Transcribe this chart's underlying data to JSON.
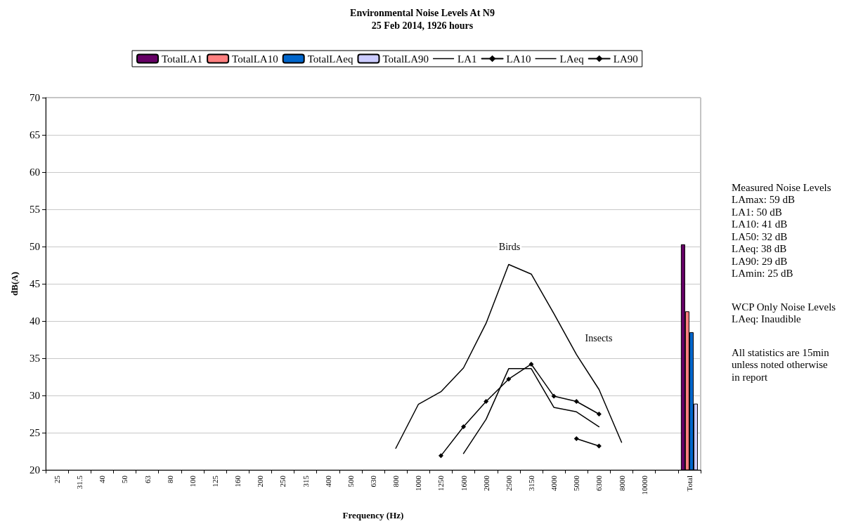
{
  "chart_data": {
    "type": "bar",
    "title": "Environmental Noise Levels At N9",
    "subtitle": "25 Feb 2014, 1926 hours",
    "xlabel": "Frequency (Hz)",
    "ylabel": "dB(A)",
    "categories": [
      "25",
      "31.5",
      "40",
      "50",
      "63",
      "80",
      "100",
      "125",
      "160",
      "200",
      "250",
      "315",
      "400",
      "500",
      "630",
      "800",
      "1000",
      "1250",
      "1600",
      "2000",
      "2500",
      "3150",
      "4000",
      "5000",
      "6300",
      "8000",
      "10000",
      null,
      "Total"
    ],
    "series": [
      {
        "name": "TotalLA1",
        "color": "#660066",
        "values": [
          null,
          null,
          null,
          null,
          null,
          null,
          null,
          null,
          null,
          null,
          null,
          null,
          null,
          null,
          null,
          null,
          null,
          null,
          null,
          null,
          null,
          null,
          null,
          null,
          null,
          null,
          null,
          null,
          50.3
        ]
      },
      {
        "name": "TotalLA10",
        "color": "#ff8080",
        "values": [
          null,
          null,
          null,
          null,
          null,
          null,
          null,
          null,
          null,
          null,
          null,
          null,
          null,
          null,
          null,
          null,
          null,
          null,
          null,
          null,
          null,
          null,
          null,
          null,
          null,
          null,
          null,
          null,
          41.3
        ]
      },
      {
        "name": "TotalLAeq",
        "color": "#0066cc",
        "values": [
          null,
          null,
          null,
          null,
          null,
          null,
          null,
          null,
          null,
          null,
          null,
          null,
          null,
          null,
          null,
          null,
          null,
          null,
          null,
          null,
          null,
          null,
          null,
          null,
          null,
          null,
          null,
          null,
          38.5
        ]
      },
      {
        "name": "TotalLA90",
        "color": "#ccccff",
        "values": [
          null,
          null,
          null,
          null,
          null,
          null,
          null,
          null,
          null,
          null,
          null,
          null,
          null,
          null,
          null,
          null,
          null,
          null,
          null,
          null,
          null,
          null,
          null,
          null,
          null,
          null,
          null,
          null,
          28.9
        ]
      },
      {
        "name": "LA1",
        "type": "line",
        "color": "#000000",
        "marker": "none",
        "values": [
          null,
          null,
          null,
          null,
          null,
          null,
          null,
          null,
          null,
          null,
          null,
          null,
          null,
          null,
          null,
          22.9,
          28.8,
          30.5,
          33.7,
          39.7,
          47.6,
          46.3,
          41.0,
          35.5,
          30.8,
          23.7,
          null,
          null,
          null
        ]
      },
      {
        "name": "LA10",
        "type": "line",
        "color": "#000000",
        "marker": "diamond",
        "values": [
          null,
          null,
          null,
          null,
          null,
          null,
          null,
          null,
          null,
          null,
          null,
          null,
          null,
          null,
          null,
          null,
          null,
          21.9,
          25.8,
          29.2,
          32.2,
          34.2,
          29.9,
          29.2,
          27.5,
          null,
          null,
          null,
          null
        ]
      },
      {
        "name": "LAeq",
        "type": "line",
        "color": "#000000",
        "marker": "none",
        "values": [
          null,
          null,
          null,
          null,
          null,
          null,
          null,
          null,
          null,
          null,
          null,
          null,
          null,
          null,
          null,
          null,
          null,
          null,
          22.2,
          26.8,
          33.6,
          33.6,
          28.4,
          27.8,
          25.8,
          null,
          null,
          null,
          null
        ]
      },
      {
        "name": "LA90",
        "type": "line",
        "color": "#000000",
        "marker": "diamond",
        "values": [
          null,
          null,
          null,
          null,
          null,
          null,
          null,
          null,
          null,
          null,
          null,
          null,
          null,
          null,
          null,
          null,
          null,
          null,
          null,
          null,
          null,
          null,
          null,
          24.2,
          23.2,
          null,
          null,
          null,
          null
        ]
      }
    ],
    "ylim": [
      20,
      70
    ],
    "yticks": [
      20,
      25,
      30,
      35,
      40,
      45,
      50,
      55,
      60,
      65,
      70
    ],
    "grid": "y",
    "legend": "top",
    "annotations": [
      "Birds",
      "Insects",
      "Measured Noise Levels\nLAmax: 59 dB\nLA1: 50 dB\nLA10: 41 dB\nLA50: 32 dB\nLAeq: 38 dB\nLA90: 29 dB\nLAmin: 25 dB",
      "WCP Only Noise Levels\nLAeq: Inaudible",
      "All statistics are 15min\nunless noted otherwise\nin report"
    ]
  }
}
